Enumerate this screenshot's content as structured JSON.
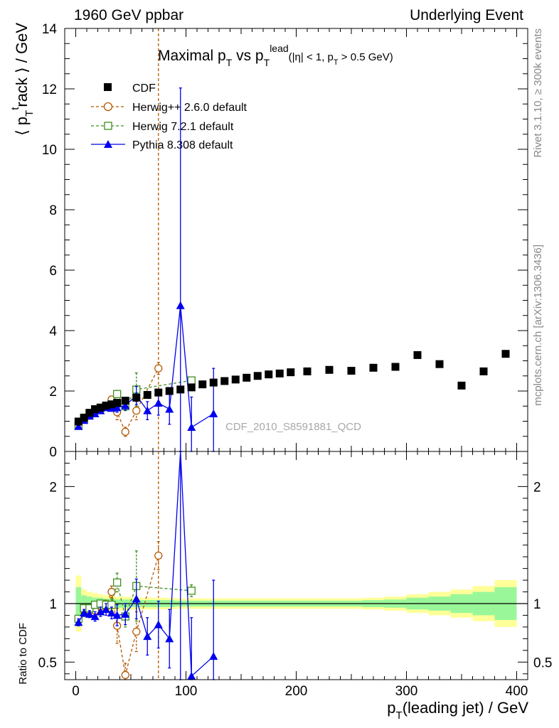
{
  "header": {
    "left": "1960 GeV ppbar",
    "right": "Underlying Event"
  },
  "side_labels": {
    "rivet": "Rivet 3.1.10, ≥ 300k events",
    "mcplots": "mcplots.cern.ch [arXiv:1306.3436]"
  },
  "watermark": "CDF_2010_S8591881_QCD",
  "colors": {
    "cdf": "#000000",
    "herwigpp": "#b35900",
    "herwig7": "#3f8f1f",
    "pythia": "#0000ee",
    "band_outer": "#ffff99",
    "band_inner": "#99f799"
  },
  "chart_data": [
    {
      "type": "scatter",
      "title": {
        "main": "Maximal p",
        "sub1": "T",
        "mid": " vs p",
        "sub2": "T",
        "sup2": "lead",
        "cut_a": "(|η| < 1, p",
        "cut_sub": "T",
        "cut_b": " > 0.5 GeV)"
      },
      "ylabel": {
        "a": "⟨ p",
        "sub": "T",
        "sup": "t",
        "b": "rack ⟩ / GeV"
      },
      "xlim": [
        -10,
        410
      ],
      "ylim": [
        0,
        14
      ],
      "yticks": [
        "0",
        "2",
        "4",
        "6",
        "8",
        "10",
        "12",
        "14"
      ],
      "legend_position": "top-left",
      "series": [
        {
          "name": "CDF",
          "marker": "square",
          "x": [
            2.5,
            7.5,
            12.5,
            17.5,
            22.5,
            27.5,
            32.5,
            37.5,
            45,
            55,
            65,
            75,
            85,
            95,
            105,
            115,
            125,
            135,
            145,
            155,
            165,
            175,
            185,
            195,
            210,
            230,
            250,
            270,
            290,
            310,
            330,
            350,
            370,
            390
          ],
          "y": [
            0.99,
            1.12,
            1.28,
            1.4,
            1.45,
            1.52,
            1.56,
            1.61,
            1.68,
            1.78,
            1.87,
            1.95,
            2.0,
            2.05,
            2.12,
            2.22,
            2.28,
            2.33,
            2.38,
            2.44,
            2.5,
            2.55,
            2.58,
            2.62,
            2.65,
            2.7,
            2.67,
            2.77,
            2.8,
            3.19,
            2.89,
            2.18,
            2.65,
            3.23
          ]
        },
        {
          "name": "Herwig++ 2.6.0 default",
          "marker": "circle-open",
          "x": [
            2.5,
            7.5,
            12.5,
            17.5,
            22.5,
            27.5,
            32.5,
            37.5,
            45,
            55,
            75
          ],
          "y": [
            0.85,
            1.05,
            1.2,
            1.32,
            1.42,
            1.48,
            1.72,
            1.3,
            0.65,
            1.35,
            2.75
          ],
          "err": [
            0.03,
            0.03,
            0.03,
            0.03,
            0.04,
            0.05,
            0.08,
            0.25,
            0.15,
            0.3,
            0.2
          ]
        },
        {
          "name": "Herwig 7.2.1 default",
          "marker": "square-open",
          "x": [
            2.5,
            7.5,
            12.5,
            17.5,
            22.5,
            27.5,
            32.5,
            37.5,
            45,
            55,
            105
          ],
          "y": [
            0.86,
            1.08,
            1.23,
            1.38,
            1.45,
            1.5,
            1.55,
            1.9,
            1.5,
            2.05,
            2.35
          ],
          "err": [
            0.03,
            0.03,
            0.03,
            0.04,
            0.05,
            0.06,
            0.08,
            0.12,
            0.15,
            0.55,
            0.1
          ]
        },
        {
          "name": "Pythia 8.308 default",
          "marker": "triangle",
          "x": [
            2.5,
            7.5,
            12.5,
            17.5,
            22.5,
            27.5,
            32.5,
            37.5,
            45,
            55,
            65,
            75,
            85,
            95,
            105,
            125
          ],
          "y": [
            0.83,
            1.03,
            1.17,
            1.25,
            1.35,
            1.45,
            1.43,
            1.45,
            1.52,
            1.85,
            1.35,
            1.6,
            1.4,
            4.83,
            0.8,
            1.25
          ],
          "err": [
            0.03,
            0.03,
            0.04,
            0.05,
            0.06,
            0.07,
            0.08,
            0.15,
            0.15,
            0.3,
            0.3,
            0.4,
            0.5,
            7.2,
            1.0,
            1.5
          ]
        }
      ]
    },
    {
      "type": "scatter",
      "ylabel": "Ratio to CDF",
      "xlabel": {
        "a": "p",
        "sub": "T",
        "b": "(leading jet) / GeV"
      },
      "xlim": [
        -10,
        410
      ],
      "ylim": [
        0.35,
        2.3
      ],
      "yticks": [
        "0.5",
        "1",
        "2"
      ],
      "xticks": [
        "0",
        "100",
        "200",
        "300",
        "400"
      ],
      "bands": {
        "x_edges": [
          0,
          5,
          10,
          15,
          20,
          25,
          30,
          35,
          40,
          50,
          60,
          70,
          80,
          90,
          100,
          110,
          120,
          130,
          140,
          150,
          160,
          170,
          180,
          190,
          200,
          220,
          240,
          260,
          280,
          300,
          320,
          340,
          360,
          380,
          400
        ],
        "outer": [
          0.24,
          0.12,
          0.1,
          0.09,
          0.08,
          0.07,
          0.07,
          0.06,
          0.06,
          0.05,
          0.05,
          0.05,
          0.05,
          0.045,
          0.045,
          0.045,
          0.045,
          0.045,
          0.045,
          0.045,
          0.045,
          0.045,
          0.045,
          0.045,
          0.045,
          0.045,
          0.045,
          0.05,
          0.06,
          0.08,
          0.1,
          0.12,
          0.15,
          0.2,
          0.5
        ],
        "inner": [
          0.14,
          0.07,
          0.06,
          0.05,
          0.05,
          0.04,
          0.04,
          0.035,
          0.035,
          0.03,
          0.03,
          0.03,
          0.03,
          0.025,
          0.025,
          0.025,
          0.025,
          0.025,
          0.025,
          0.025,
          0.025,
          0.025,
          0.025,
          0.025,
          0.025,
          0.025,
          0.025,
          0.03,
          0.035,
          0.05,
          0.06,
          0.08,
          0.1,
          0.14,
          0.28
        ]
      },
      "series": [
        {
          "name": "Herwig++ 2.6.0 default",
          "marker": "circle-open",
          "x": [
            2.5,
            7.5,
            12.5,
            17.5,
            22.5,
            27.5,
            32.5,
            37.5,
            45,
            55,
            75
          ],
          "y": [
            0.86,
            0.94,
            0.94,
            0.94,
            0.98,
            0.97,
            1.1,
            0.81,
            0.39,
            0.76,
            1.41
          ],
          "err": [
            0.03,
            0.03,
            0.03,
            0.03,
            0.03,
            0.04,
            0.05,
            0.15,
            0.1,
            0.17,
            0.12
          ]
        },
        {
          "name": "Herwig 7.2.1 default",
          "marker": "square-open",
          "x": [
            2.5,
            7.5,
            12.5,
            17.5,
            22.5,
            27.5,
            32.5,
            37.5,
            45,
            55,
            105
          ],
          "y": [
            0.87,
            0.96,
            0.96,
            0.99,
            1.0,
            0.99,
            0.99,
            1.18,
            0.89,
            1.15,
            1.11
          ],
          "err": [
            0.03,
            0.03,
            0.03,
            0.03,
            0.03,
            0.04,
            0.05,
            0.08,
            0.09,
            0.3,
            0.05
          ]
        },
        {
          "name": "Pythia 8.308 default",
          "marker": "triangle",
          "x": [
            2.5,
            7.5,
            12.5,
            17.5,
            22.5,
            27.5,
            32.5,
            37.5,
            45,
            55,
            65,
            75,
            85,
            95,
            105,
            125
          ],
          "y": [
            0.84,
            0.92,
            0.91,
            0.89,
            0.93,
            0.95,
            0.92,
            0.9,
            0.91,
            1.04,
            0.72,
            0.82,
            0.7,
            2.36,
            0.38,
            0.55
          ],
          "err": [
            0.03,
            0.03,
            0.03,
            0.04,
            0.04,
            0.05,
            0.05,
            0.09,
            0.09,
            0.17,
            0.16,
            0.2,
            0.25,
            3.5,
            0.5,
            0.65
          ]
        }
      ]
    }
  ]
}
